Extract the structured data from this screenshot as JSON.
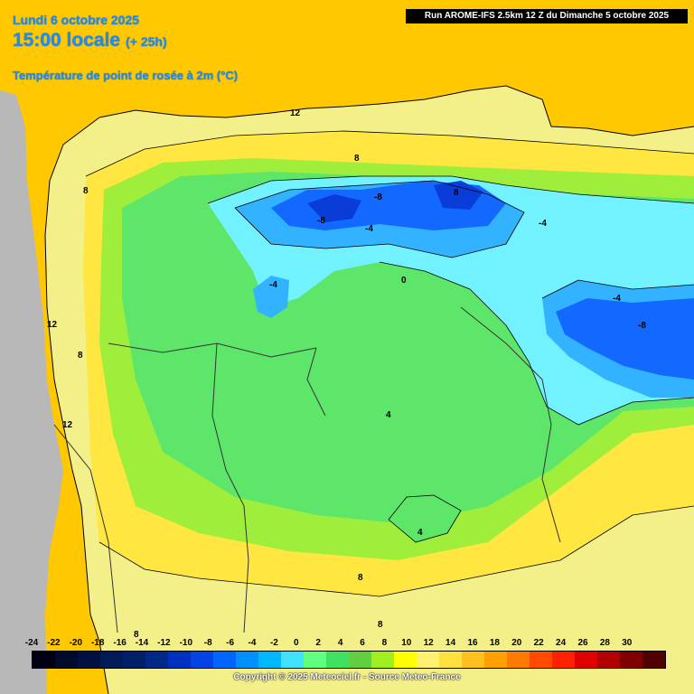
{
  "header": {
    "date": "Lundi 6 octobre 2025",
    "local_time": "15:00 locale",
    "lead_time": "(+ 25h)",
    "parameter": "Température de point de rosée à 2m (°C)"
  },
  "run_info": "Run AROME-IFS 2.5km 12 Z du Dimanche 5 octobre 2025",
  "legend": {
    "ticks": [
      "-24",
      "-22",
      "-20",
      "-18",
      "-16",
      "-14",
      "-12",
      "-10",
      "-8",
      "-6",
      "-4",
      "-2",
      "0",
      "2",
      "4",
      "6",
      "8",
      "10",
      "12",
      "14",
      "16",
      "18",
      "20",
      "22",
      "24",
      "26",
      "28",
      "30"
    ],
    "colors": [
      "#000015",
      "#000a2a",
      "#001040",
      "#001a55",
      "#00206a",
      "#002888",
      "#0030c0",
      "#0044e6",
      "#0066ff",
      "#0090ff",
      "#00b8ff",
      "#40e0ff",
      "#60ff80",
      "#40e060",
      "#60d040",
      "#a0f020",
      "#ffff00",
      "#fff070",
      "#ffe040",
      "#ffc020",
      "#ffa000",
      "#ff7a00",
      "#ff4a00",
      "#ff2000",
      "#e00000",
      "#b00000",
      "#800000",
      "#500000"
    ]
  },
  "map": {
    "colors": {
      "sea": "#ffc800",
      "land_outside": "#b8b8b8",
      "warm_land": "#f4f089",
      "yellow_belt": "#ffe640",
      "green_light": "#a0ee3c",
      "green": "#5ee66a",
      "cyan": "#72f2ff",
      "sky": "#33b3ff",
      "blue": "#1268ff",
      "deep_blue": "#0a3cd8"
    },
    "contour_labels": [
      "12",
      "8",
      "8",
      "-8",
      "-8",
      "-4",
      "-4",
      "-4",
      "-4",
      "0",
      "-8",
      "4",
      "4",
      "12",
      "12",
      "8",
      "8",
      "8",
      "8",
      "8"
    ]
  },
  "copyright": "Copyright © 2025 Meteociel.fr - Source Meteo-France"
}
